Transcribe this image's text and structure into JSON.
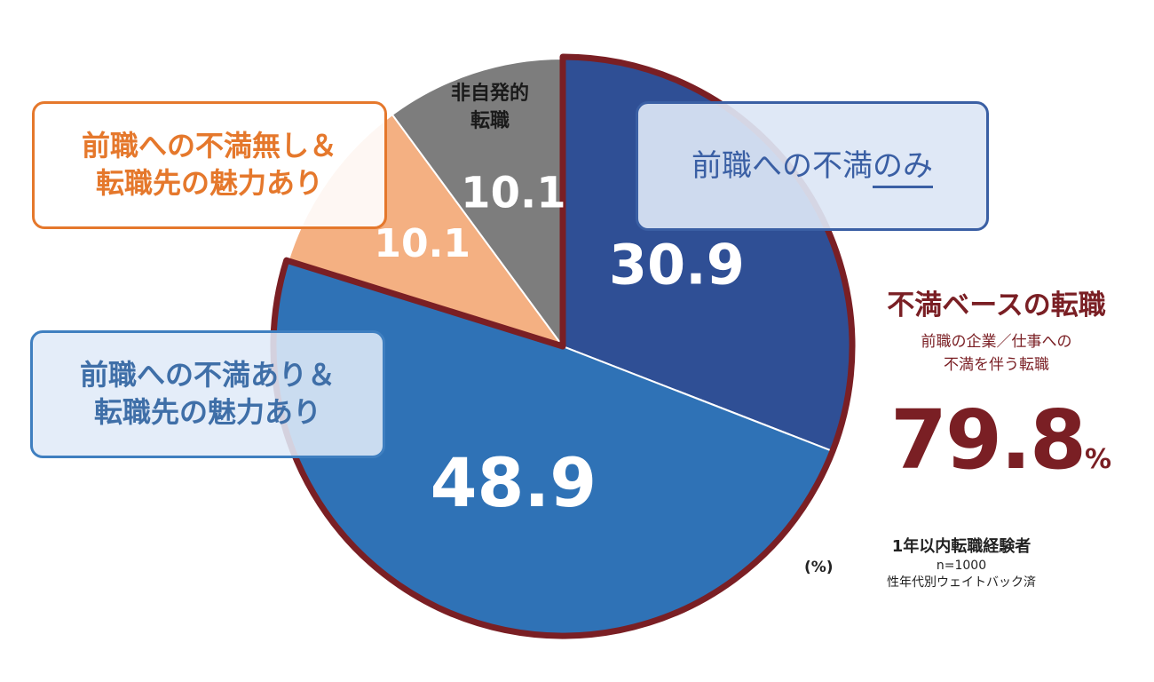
{
  "chart_data": {
    "type": "pie",
    "unit": "(%)",
    "slices": [
      {
        "label": "前職への不満のみ",
        "value": 30.9,
        "value_label": "30.9",
        "color": "#2f4f95"
      },
      {
        "label": "前職への不満あり＆転職先の魅力あり",
        "value": 48.9,
        "value_label": "48.9",
        "color": "#2f72b6"
      },
      {
        "label": "前職への不満無し＆転職先の魅力あり",
        "value": 10.1,
        "value_label": "10.1",
        "color": "#f4b082"
      },
      {
        "label": "非自発的転職",
        "value": 10.1,
        "value_label": "10.1",
        "color": "#7d7d7d"
      }
    ],
    "highlight": {
      "color": "#7a1f24"
    }
  },
  "labels": {
    "only_main": "前職への不満",
    "only_underlined": "のみ",
    "no_line1": "前職への不満無し＆",
    "no_line2": "転職先の魅力あり",
    "with_line1": "前職への不満あり＆",
    "with_line2": "転職先の魅力あり",
    "invol_line1": "非自発的",
    "invol_line2": "転職"
  },
  "summary": {
    "title": "不満ベースの転職",
    "desc_line1": "前職の企業／仕事への",
    "desc_line2": "不満を伴う転職",
    "value": "79.8",
    "percent": "%"
  },
  "note": {
    "line1": "1年以内転職経験者",
    "line2": "n=1000",
    "line3": "性年代別ウェイトバック済"
  }
}
